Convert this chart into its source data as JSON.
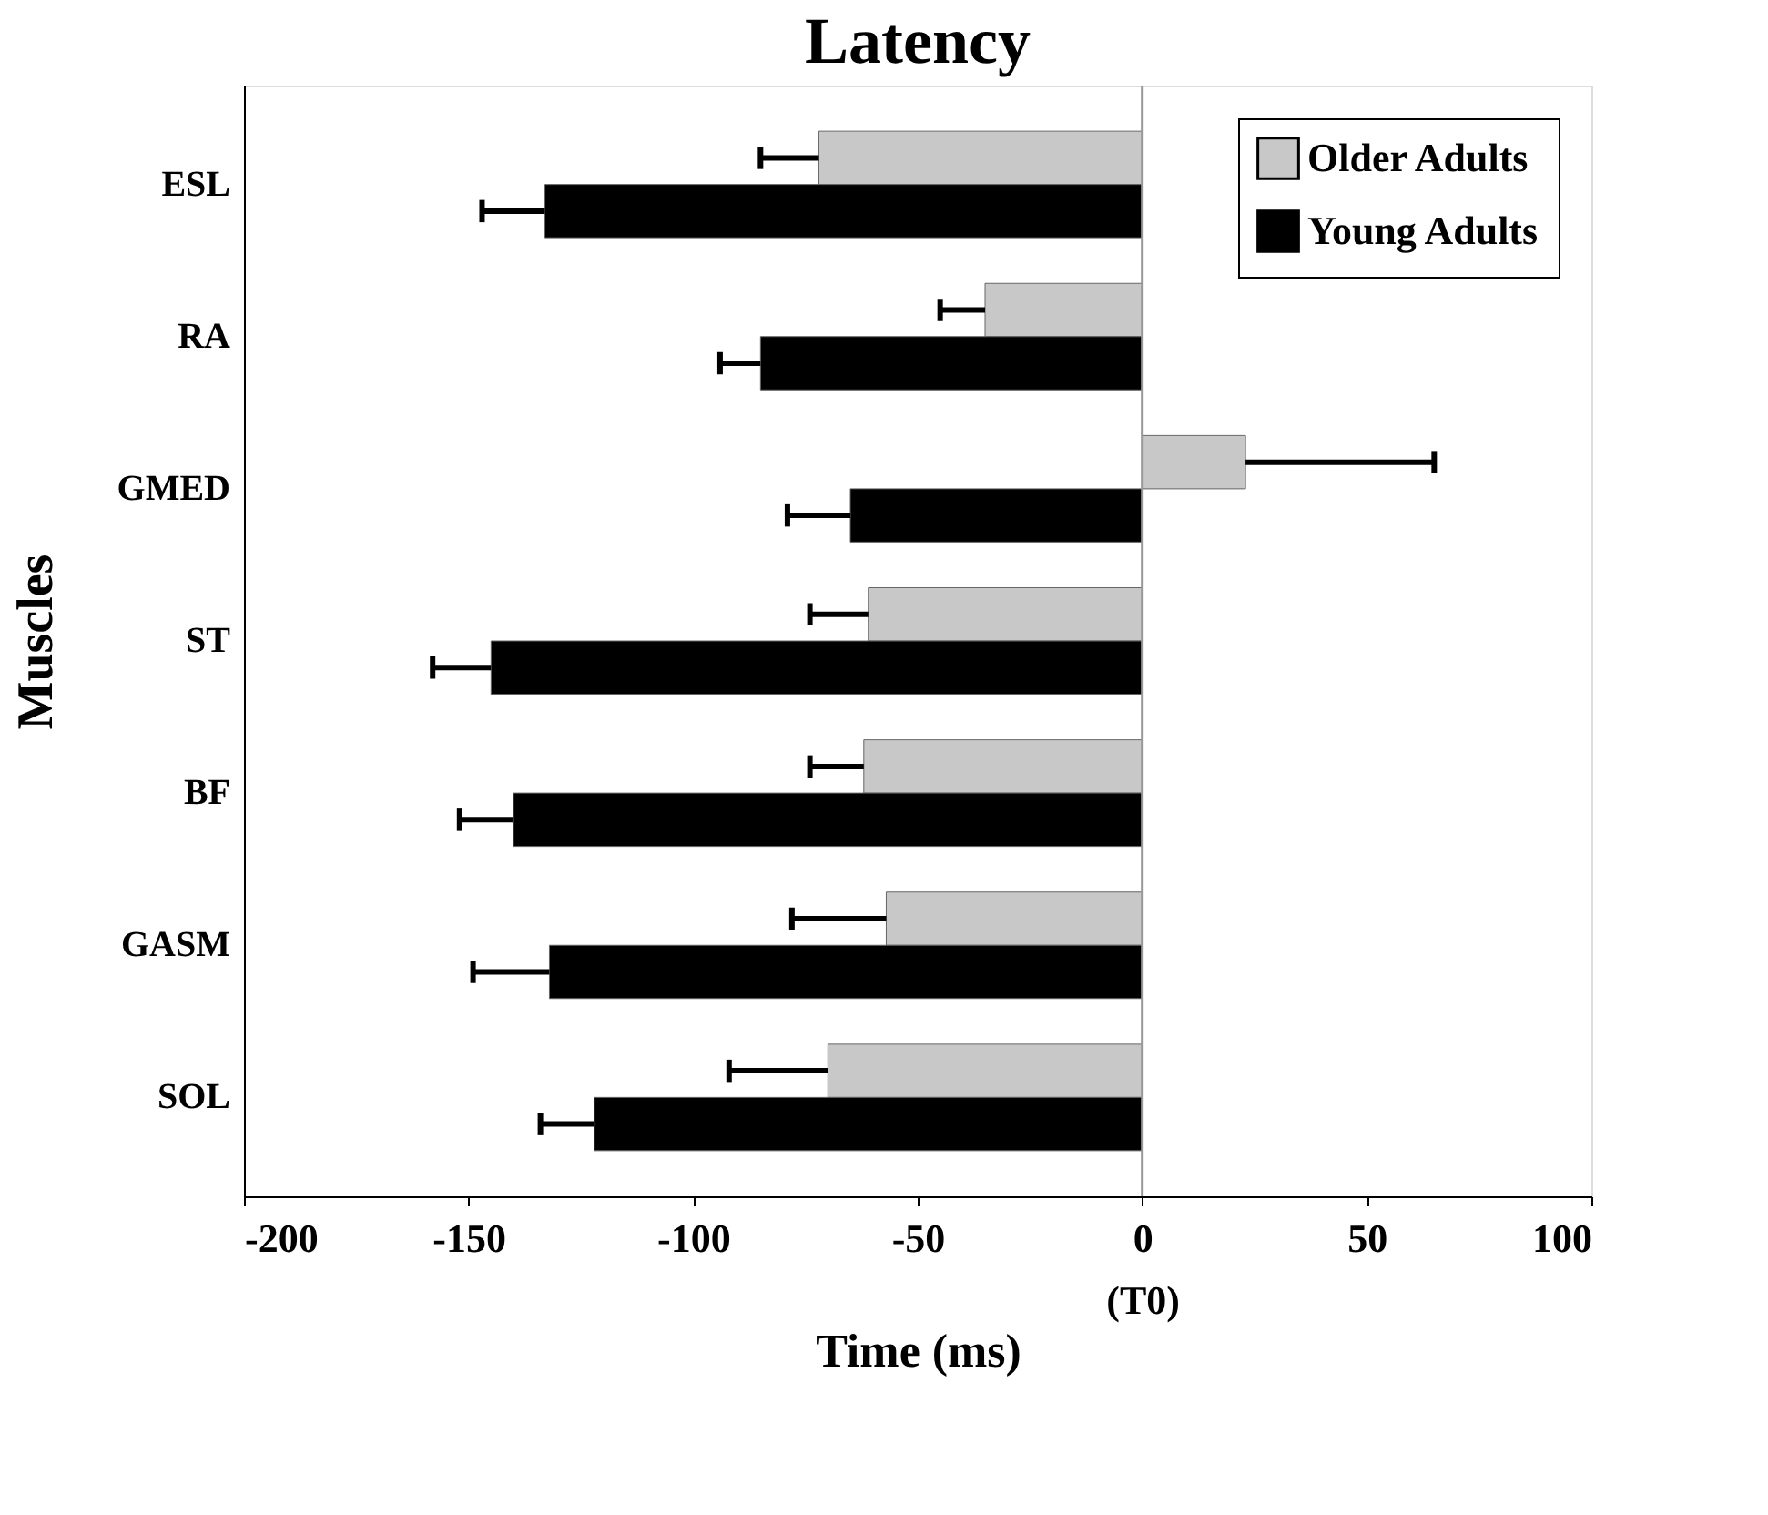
{
  "chart_data": {
    "type": "bar",
    "orientation": "horizontal",
    "title": "Latency",
    "xlabel": "Time (ms)",
    "ylabel": "Muscles",
    "categories": [
      "ESL",
      "RA",
      "GMED",
      "ST",
      "BF",
      "GASM",
      "SOL"
    ],
    "series": [
      {
        "name": "Older Adults",
        "color": "#c8c8c8",
        "values": [
          -72,
          -35,
          23,
          -61,
          -62,
          -57,
          -70
        ],
        "errors": [
          [
            -85,
            -72
          ],
          [
            -45,
            -35
          ],
          [
            23,
            65
          ],
          [
            -74,
            -61
          ],
          [
            -74,
            -62
          ],
          [
            -78,
            -57
          ],
          [
            -92,
            -70
          ]
        ]
      },
      {
        "name": "Young Adults",
        "color": "#000000",
        "values": [
          -133,
          -85,
          -65,
          -145,
          -140,
          -132,
          -122
        ],
        "errors": [
          [
            -147,
            -133
          ],
          [
            -94,
            -85
          ],
          [
            -79,
            -65
          ],
          [
            -158,
            -145
          ],
          [
            -152,
            -140
          ],
          [
            -149,
            -132
          ],
          [
            -134,
            -122
          ]
        ]
      }
    ],
    "xlim": [
      -200,
      100
    ],
    "xticks": [
      -200,
      -150,
      -100,
      -50,
      {
        "value": 0,
        "label": "0\n(T0)"
      },
      50,
      100
    ],
    "ref_lines": [
      {
        "axis": "x",
        "value": 0,
        "color": "#999999"
      }
    ],
    "grid": false,
    "legend": "top right"
  }
}
